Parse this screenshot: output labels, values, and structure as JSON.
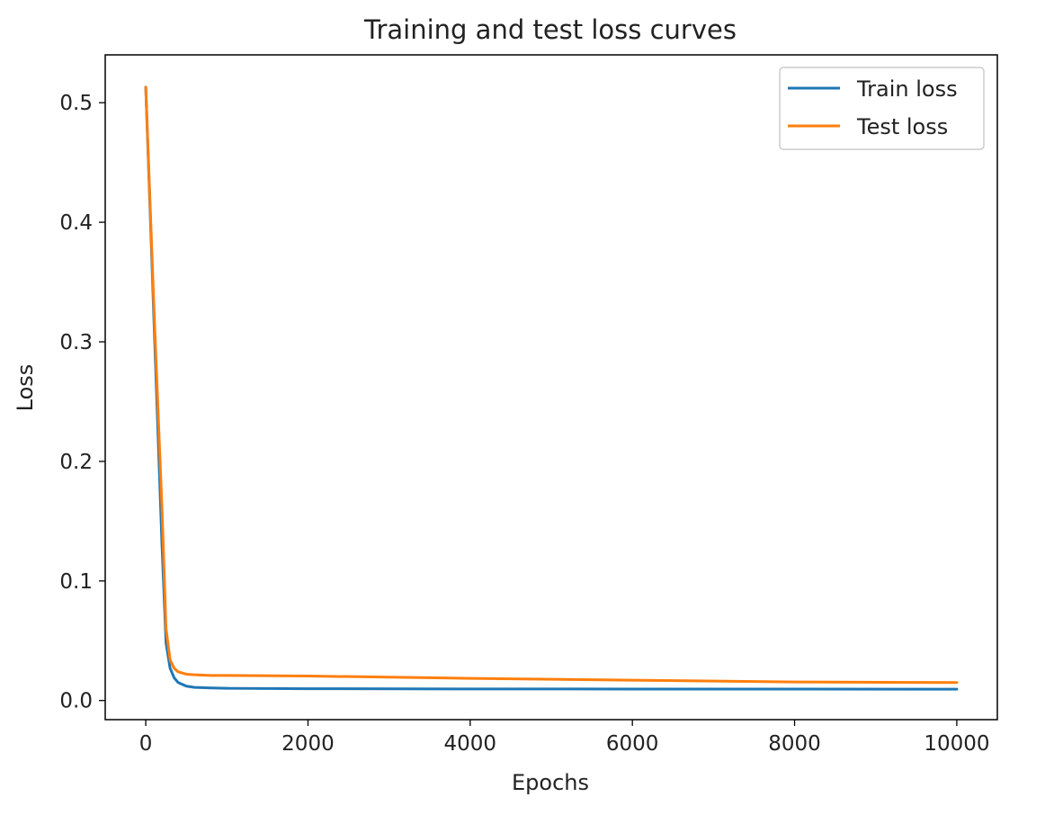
{
  "chart_data": {
    "type": "line",
    "title": "Training and test loss curves",
    "xlabel": "Epochs",
    "ylabel": "Loss",
    "xlim": [
      -500,
      10500
    ],
    "ylim": [
      -0.016,
      0.54
    ],
    "xticks": [
      0,
      2000,
      4000,
      6000,
      8000,
      10000
    ],
    "yticks": [
      0.0,
      0.1,
      0.2,
      0.3,
      0.4,
      0.5
    ],
    "xtick_labels": [
      "0",
      "2000",
      "4000",
      "6000",
      "8000",
      "10000"
    ],
    "ytick_labels": [
      "0.0",
      "0.1",
      "0.2",
      "0.3",
      "0.4",
      "0.5"
    ],
    "grid": false,
    "legend": "top-right",
    "series": [
      {
        "name": "Train loss",
        "color": "#1f77b4",
        "x": [
          0,
          100,
          200,
          250,
          300,
          350,
          400,
          500,
          600,
          800,
          1000,
          2000,
          4000,
          6000,
          8000,
          10000
        ],
        "y": [
          0.513,
          0.32,
          0.13,
          0.048,
          0.027,
          0.019,
          0.015,
          0.012,
          0.011,
          0.0105,
          0.0102,
          0.0099,
          0.0097,
          0.0096,
          0.0096,
          0.0095
        ]
      },
      {
        "name": "Test loss",
        "color": "#ff7f0e",
        "x": [
          0,
          100,
          200,
          250,
          300,
          350,
          400,
          500,
          600,
          800,
          1000,
          2000,
          4000,
          6000,
          8000,
          10000
        ],
        "y": [
          0.513,
          0.33,
          0.16,
          0.06,
          0.034,
          0.027,
          0.024,
          0.022,
          0.0215,
          0.021,
          0.021,
          0.0205,
          0.0185,
          0.017,
          0.0155,
          0.015
        ]
      }
    ]
  }
}
